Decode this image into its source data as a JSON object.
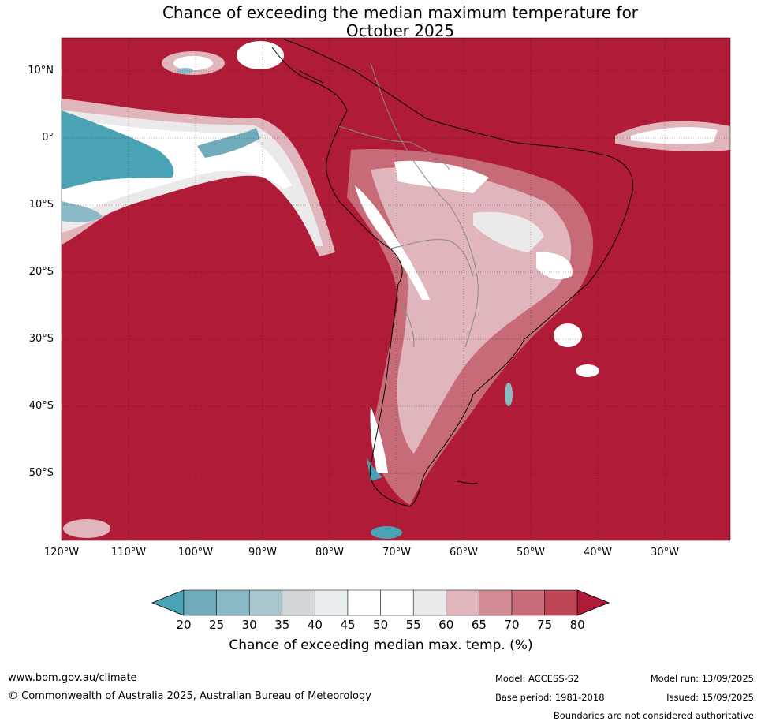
{
  "title_line1": "Chance of exceeding the median maximum temperature for",
  "title_line2": "October 2025",
  "lat_labels": [
    "10°N",
    "0°",
    "10°S",
    "20°S",
    "30°S",
    "40°S",
    "50°S"
  ],
  "lon_labels": [
    "120°W",
    "110°W",
    "100°W",
    "90°W",
    "80°W",
    "70°W",
    "60°W",
    "50°W",
    "40°W",
    "30°W"
  ],
  "colorbar": {
    "ticks": [
      "20",
      "25",
      "30",
      "35",
      "40",
      "45",
      "50",
      "55",
      "60",
      "65",
      "70",
      "75",
      "80"
    ],
    "colors": [
      "#4aa3b4",
      "#6fabba",
      "#8bbac7",
      "#a9c6ce",
      "#d2d7d9",
      "#e9eef1",
      "#ffffff",
      "#ffffff",
      "#ebe9ea",
      "#e0b5bb",
      "#d48c96",
      "#c66b77",
      "#bd4655",
      "#b01c37"
    ],
    "label": "Chance of exceeding median max. temp. (%)"
  },
  "footer": {
    "website": "www.bom.gov.au/climate",
    "copyright": "© Commonwealth of Australia 2025, Australian Bureau of Meteorology",
    "model": "Model: ACCESS-S2",
    "base_period": "Base period: 1981-2018",
    "model_run": "Model run: 13/09/2025",
    "issued": "Issued: 15/09/2025",
    "disclaimer": "Boundaries are not considered authoritative"
  }
}
